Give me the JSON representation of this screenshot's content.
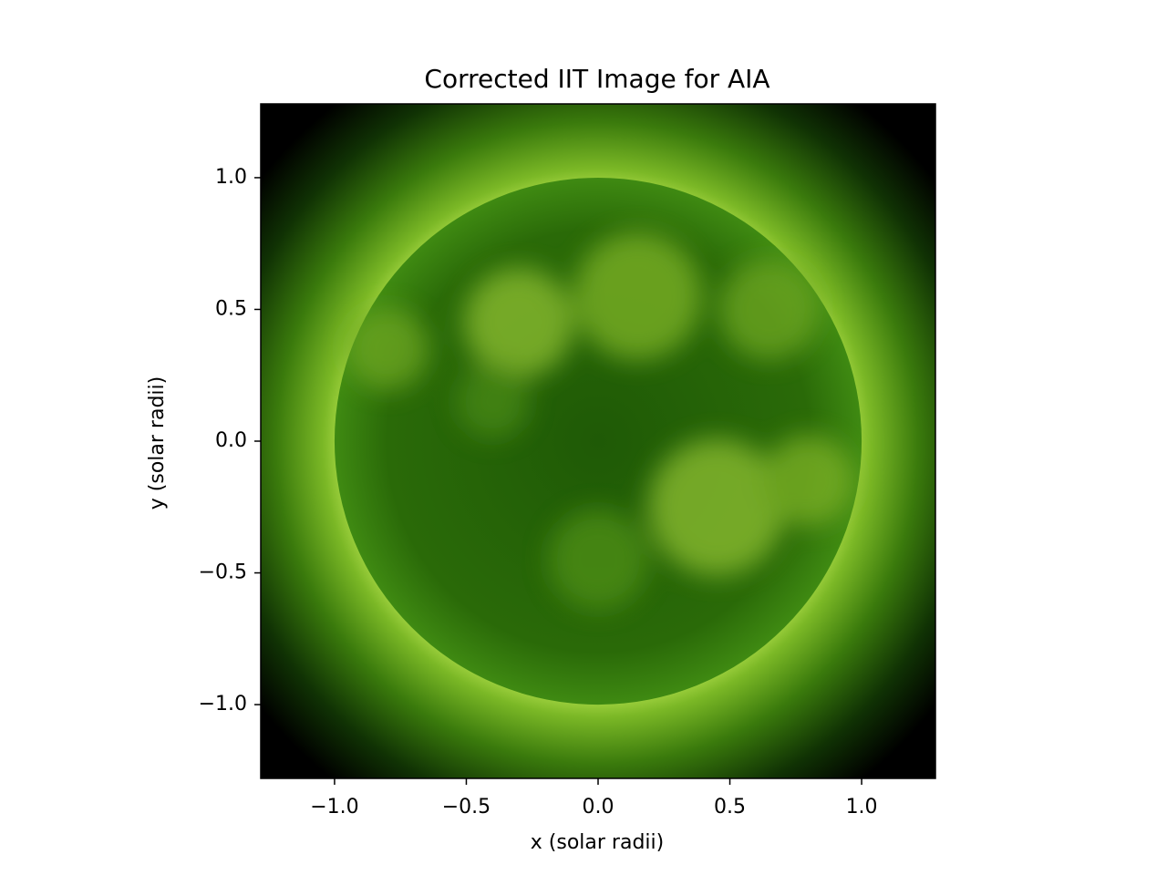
{
  "chart_data": {
    "type": "image",
    "title": "Corrected IIT Image for AIA",
    "xlabel": "x (solar radii)",
    "ylabel": "y (solar radii)",
    "xlim": [
      -1.28,
      1.28
    ],
    "ylim": [
      -1.28,
      1.28
    ],
    "xticks": [
      {
        "value": -1,
        "label": "−1.0"
      },
      {
        "value": -0.5,
        "label": "−0.5"
      },
      {
        "value": 0,
        "label": "0.0"
      },
      0.5,
      {
        "value": 1,
        "label": "1.0"
      }
    ],
    "yticks": [
      {
        "value": -1,
        "label": "−1.0"
      },
      {
        "value": -0.5,
        "label": "−0.5"
      },
      {
        "value": 0,
        "label": "0.0"
      },
      0.5,
      {
        "value": 1,
        "label": "1.0"
      }
    ]
  }
}
